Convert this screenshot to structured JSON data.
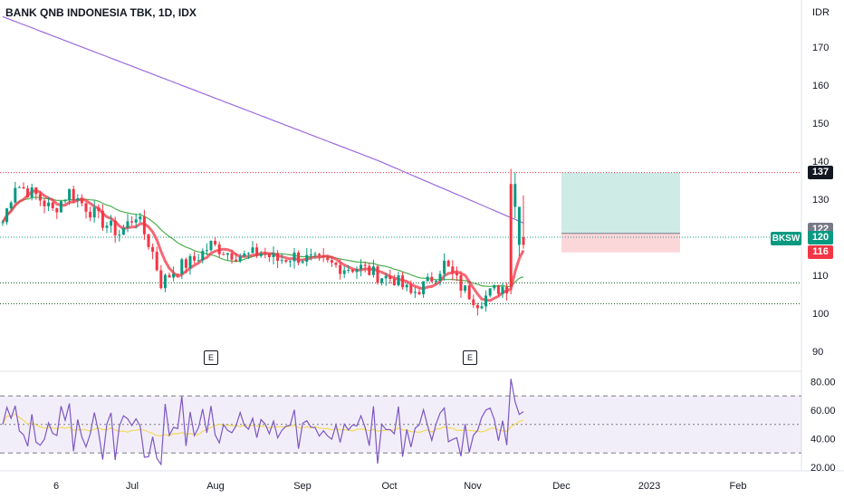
{
  "title": "BANK QNB INDONESIA TBK, 1D, IDX",
  "currency": "IDR",
  "symbol": "BKSW",
  "colors": {
    "up": "#089981",
    "down": "#f23645",
    "ma_long": "#9c6ade",
    "ma_mid": "#4caf50",
    "ema": "#f23645",
    "rsi": "#7e57c2",
    "rsi_ma": "#f2d95c"
  },
  "chart_data": [
    {
      "type": "candlestick",
      "ylim": [
        86,
        180
      ],
      "y_ticks": [
        90,
        100,
        110,
        120,
        130,
        140,
        150,
        160,
        170
      ],
      "y_tick_labels": [
        "90",
        "100",
        "110",
        "120",
        "130",
        "140",
        "150",
        "160",
        "170"
      ],
      "x_tick_labels": [
        "6",
        "Jul",
        "Aug",
        "Sep",
        "Oct",
        "Nov",
        "Dec",
        "2023",
        "Feb"
      ],
      "last_price": 120,
      "price_labels": [
        {
          "text": "137",
          "value": 137,
          "color": "#131722"
        },
        {
          "text": "122",
          "value": 122,
          "color": "#787b86"
        },
        {
          "text": "120",
          "value": 120,
          "color": "#089981"
        },
        {
          "text": "116",
          "value": 116,
          "color": "#f23645"
        }
      ],
      "horizontal_levels": [
        {
          "value": 137,
          "style": "dotted",
          "color": "#f23645"
        },
        {
          "value": 120,
          "style": "dotted",
          "color": "#089981"
        },
        {
          "value": 108,
          "style": "dotted",
          "color": "#1b5e20"
        },
        {
          "value": 102.5,
          "style": "dotted",
          "color": "#1b5e20"
        }
      ],
      "position_box": {
        "entry": 121,
        "target": 137,
        "stop": 116
      },
      "earnings_markers": [
        "E",
        "E"
      ]
    },
    {
      "type": "line",
      "indicator": "RSI",
      "ylim": [
        16,
        86
      ],
      "y_ticks": [
        20,
        40,
        60,
        80
      ],
      "y_tick_labels": [
        "20.00",
        "40.00",
        "60.00",
        "80.00"
      ],
      "bands": [
        70,
        50,
        30
      ]
    }
  ]
}
